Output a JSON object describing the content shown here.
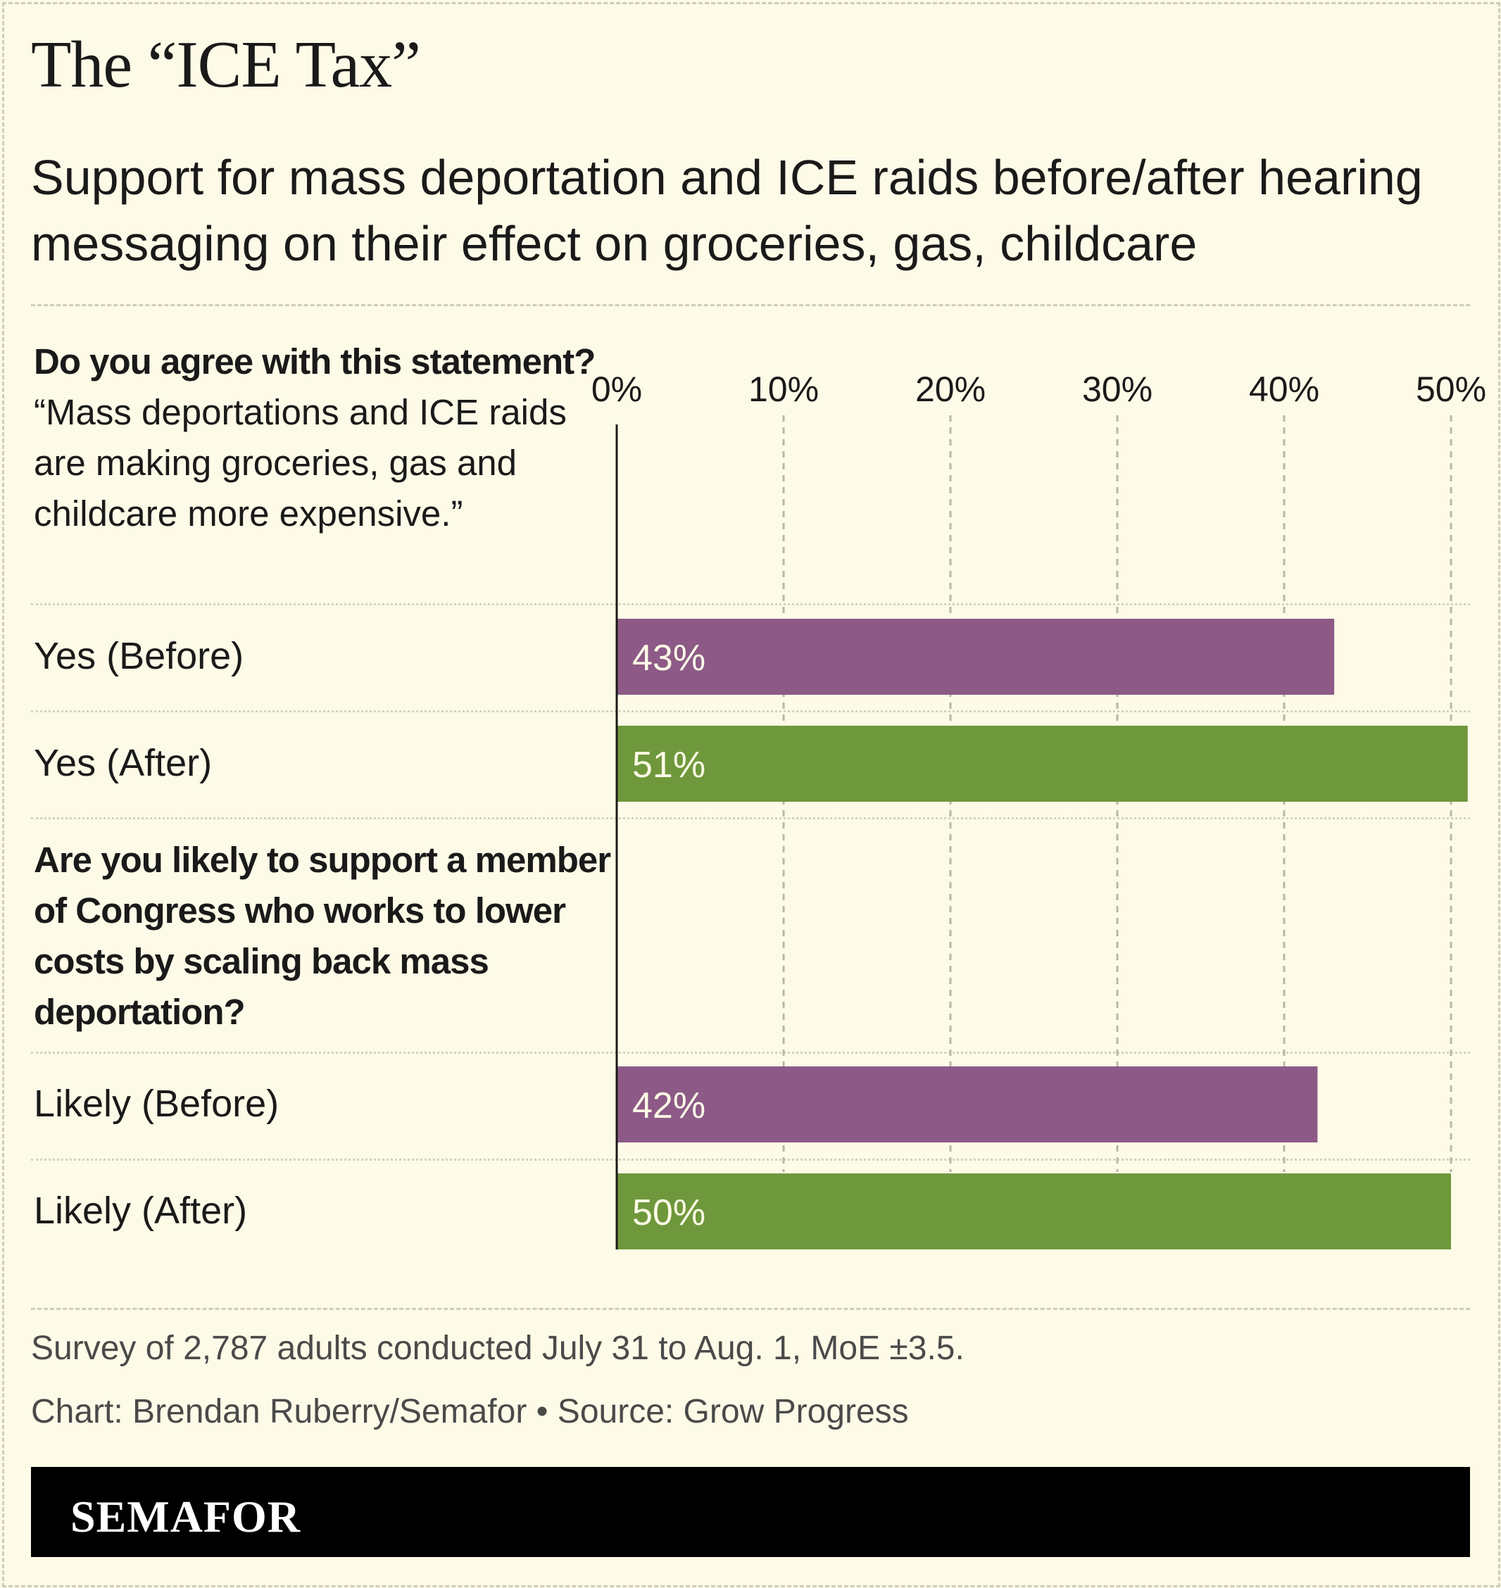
{
  "header": {
    "title": "The “ICE Tax”",
    "subtitle": "Support for mass deportation and ICE raids before/after hearing messaging on their effect on groceries, gas, childcare"
  },
  "questions": [
    {
      "bold": "Do you agree with this statement?",
      "rest": " “Mass deportations and ICE raids are making groceries, gas and childcare more expensive.”"
    },
    {
      "bold": "Are you likely to support a member of Congress who works to lower costs by scaling back mass deportation?",
      "rest": ""
    }
  ],
  "chart_data": {
    "type": "bar",
    "orientation": "horizontal",
    "categories": [
      "Yes (Before)",
      "Yes (After)",
      "Likely (Before)",
      "Likely (After)"
    ],
    "values": [
      43,
      51,
      42,
      50
    ],
    "data_labels": [
      "43%",
      "51%",
      "42%",
      "50%"
    ],
    "bar_colors": [
      "#8d5a87",
      "#6f983c",
      "#8d5a87",
      "#6f983c"
    ],
    "x_ticks": [
      "0%",
      "10%",
      "20%",
      "30%",
      "40%",
      "50%"
    ],
    "x_tick_values": [
      0,
      10,
      20,
      30,
      40,
      50
    ],
    "xlim": [
      0,
      51
    ],
    "grid": "vertical dashed"
  },
  "footer": {
    "note": "Survey of 2,787 adults conducted July 31 to Aug. 1, MoE ±3.5.",
    "credit": "Chart: Brendan Ruberry/Semafor • Source: Grow Progress"
  },
  "brand": {
    "name": "SEMAFOR"
  },
  "colors": {
    "background": "#fdfbe7",
    "before": "#8d5a87",
    "after": "#6f983c",
    "label_text": "#fdfbe7"
  }
}
